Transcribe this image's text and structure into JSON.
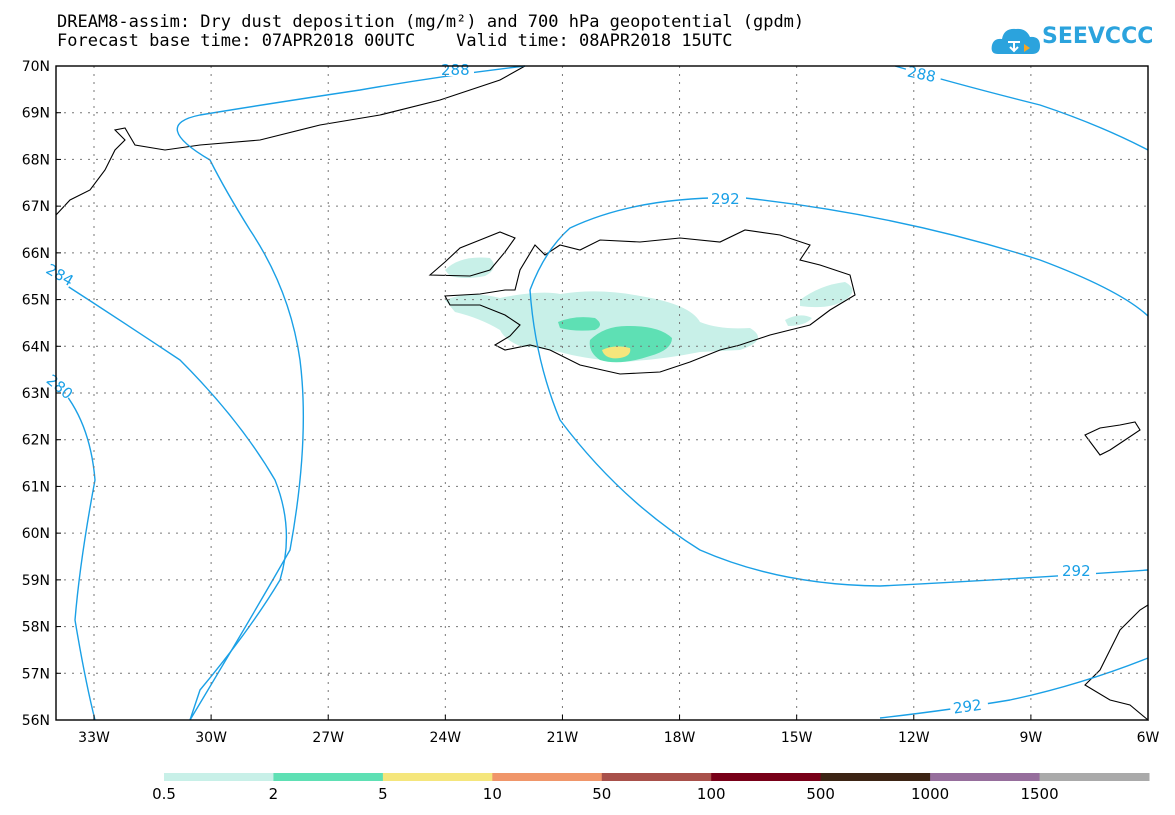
{
  "header": {
    "title_line1": "DREAM8-assim: Dry dust deposition (mg/m²) and 700 hPa geopotential (gpdm)",
    "title_line2": "Forecast base time: 07APR2018 00UTC    Valid time: 08APR2018 15UTC"
  },
  "logo": {
    "text": "SEEVCCC",
    "icon": "cloud-icon"
  },
  "map": {
    "lat_labels": [
      "70N",
      "69N",
      "68N",
      "67N",
      "66N",
      "65N",
      "64N",
      "63N",
      "62N",
      "61N",
      "60N",
      "59N",
      "58N",
      "57N",
      "56N"
    ],
    "lon_labels": [
      "33W",
      "30W",
      "27W",
      "24W",
      "21W",
      "18W",
      "15W",
      "12W",
      "9W",
      "6W"
    ],
    "contour_labels": [
      "288",
      "288",
      "292",
      "292",
      "292",
      "284",
      "280"
    ]
  },
  "colorbar": {
    "labels": [
      "0.5",
      "2",
      "5",
      "10",
      "50",
      "100",
      "500",
      "1000",
      "1500"
    ],
    "colors": [
      "#c8f0e8",
      "#5ee0b4",
      "#f5e67c",
      "#f0966a",
      "#a8504a",
      "#780018",
      "#3c2414",
      "#966e9c",
      "#aaaaaa"
    ]
  },
  "colors": {
    "contour": "#1aa0e6",
    "coast": "#000000"
  }
}
